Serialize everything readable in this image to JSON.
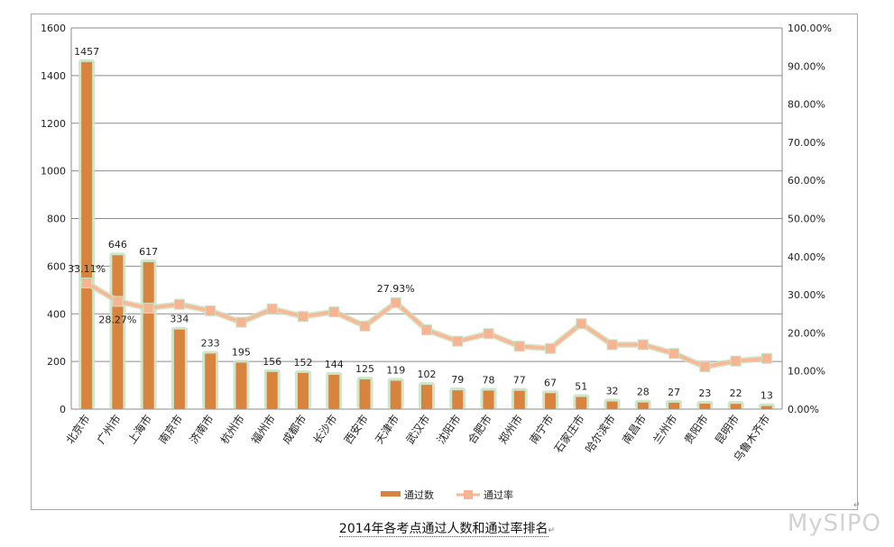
{
  "colors": {
    "bar_fill": "#d8843f",
    "bar_glow": "#c9e3c4",
    "line": "#f7b996",
    "marker": "#f7b493",
    "grid": "#8c8c8c",
    "text": "#222222"
  },
  "caption": {
    "text": "2014年各考点通过人数和通过率排名",
    "mark": "↵"
  },
  "watermark": "MySIPO",
  "corner_mark": "↵",
  "chart_data": {
    "type": "bar",
    "title": "",
    "categories": [
      "北京市",
      "广州市",
      "上海市",
      "南京市",
      "济南市",
      "杭州市",
      "福州市",
      "成都市",
      "长沙市",
      "西安市",
      "天津市",
      "武汉市",
      "沈阳市",
      "合肥市",
      "郑州市",
      "南宁市",
      "石家庄市",
      "哈尔滨市",
      "南昌市",
      "兰州市",
      "贵阳市",
      "昆明市",
      "乌鲁木齐市"
    ],
    "series": [
      {
        "name": "通过数",
        "type": "bar",
        "axis": "left",
        "values": [
          1457,
          646,
          617,
          334,
          233,
          195,
          156,
          152,
          144,
          125,
          119,
          102,
          79,
          78,
          77,
          67,
          51,
          32,
          28,
          27,
          23,
          22,
          13
        ],
        "labels": [
          "1457",
          "646",
          "617",
          "334",
          "233",
          "195",
          "156",
          "152",
          "144",
          "125",
          "119",
          "102",
          "79",
          "78",
          "77",
          "67",
          "51",
          "32",
          "28",
          "27",
          "23",
          "22",
          "13"
        ]
      },
      {
        "name": "通过率",
        "type": "line",
        "axis": "right",
        "values": [
          33.11,
          28.27,
          26.5,
          27.5,
          25.8,
          22.8,
          26.3,
          24.3,
          25.5,
          21.8,
          27.93,
          20.8,
          17.8,
          19.8,
          16.5,
          15.9,
          22.4,
          16.9,
          16.9,
          14.6,
          11.1,
          12.6,
          13.3
        ],
        "labels": {
          "0": "33.11%",
          "1": "28.27%",
          "10": "27.93%"
        }
      }
    ],
    "y_left": {
      "min": 0,
      "max": 1600,
      "ticks": [
        "0",
        "200",
        "400",
        "600",
        "800",
        "1000",
        "1200",
        "1400",
        "1600"
      ]
    },
    "y_right": {
      "min": 0,
      "max": 100,
      "ticks": [
        "0.00%",
        "10.00%",
        "20.00%",
        "30.00%",
        "40.00%",
        "50.00%",
        "60.00%",
        "70.00%",
        "80.00%",
        "90.00%",
        "100.00%"
      ]
    },
    "grid": true,
    "legend_position": "bottom"
  }
}
